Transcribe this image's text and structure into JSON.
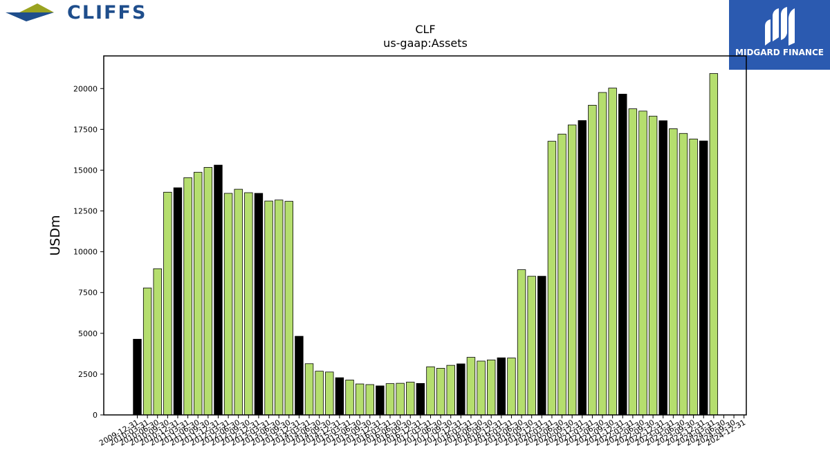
{
  "branding": {
    "company_logo_text": "CLIFFS",
    "company_logo_colors": {
      "triangle_top": "#9aa320",
      "triangle_bottom": "#1f4e8c",
      "text": "#1f4e8c"
    },
    "provider_logo_text": "MIDGARD FINANCE",
    "provider_logo_color": "#2b5ab0"
  },
  "chart_data": {
    "type": "bar",
    "title": "CLF",
    "subtitle": "us-gaap:Assets",
    "ylabel": "USDm",
    "xlabel": "",
    "ylim": [
      0,
      22000
    ],
    "yticks": [
      0,
      2500,
      5000,
      7500,
      10000,
      12500,
      15000,
      17500,
      20000
    ],
    "ytick_labels": [
      "0",
      "2500",
      "5000",
      "7500",
      "10000",
      "12500",
      "15000",
      "17500",
      "20000"
    ],
    "colors": {
      "annual": "#000000",
      "quarterly": "#b5de6e",
      "edge": "#000000"
    },
    "categories": [
      "2009-12-31",
      "2010-03-31",
      "2010-06-30",
      "2010-09-30",
      "2010-12-31",
      "2011-03-31",
      "2011-06-30",
      "2011-09-30",
      "2011-12-31",
      "2012-03-31",
      "2012-06-30",
      "2012-09-30",
      "2012-12-31",
      "2013-03-31",
      "2013-06-30",
      "2013-09-30",
      "2013-12-31",
      "2014-03-31",
      "2014-06-30",
      "2014-09-30",
      "2014-12-31",
      "2015-03-31",
      "2015-06-30",
      "2015-09-30",
      "2015-12-31",
      "2016-03-31",
      "2016-06-30",
      "2016-09-30",
      "2016-12-31",
      "2017-03-31",
      "2017-06-30",
      "2017-09-30",
      "2017-12-31",
      "2018-03-31",
      "2018-06-30",
      "2018-09-30",
      "2018-12-31",
      "2019-03-31",
      "2019-06-30",
      "2019-09-30",
      "2019-12-31",
      "2020-03-31",
      "2020-06-30",
      "2020-09-30",
      "2020-12-31",
      "2021-03-31",
      "2021-06-30",
      "2021-09-30",
      "2021-12-31",
      "2022-03-31",
      "2022-06-30",
      "2022-09-30",
      "2022-12-31",
      "2023-03-31",
      "2023-06-30",
      "2023-09-30",
      "2023-12-31",
      "2024-03-31",
      "2024-06-30",
      "2024-09-30",
      "2024-12-31"
    ],
    "xtick_labels": [
      "2009-12-31",
      "2010-03-31",
      "2010-06-30",
      "2010-09-30",
      "2010-12-31",
      "2011-03-31",
      "2011-06-30",
      "2011-09-30",
      "2011-12-31",
      "2012-03-31",
      "2012-06-30",
      "2012-09-30",
      "2012-12-31",
      "2013-03-31",
      "2013-06-30",
      "2013-09-30",
      "2013-12-31",
      "2014-03-31",
      "2014-06-30",
      "2014-09-30",
      "2014-12-31",
      "2015-03-31",
      "2015-06-30",
      "2015-09-30",
      "2015-12-31",
      "2016-03-31",
      "2016-06-30",
      "2016-09-30",
      "2016-12-31",
      "2017-03-31",
      "2017-06-30",
      "2017-09-30",
      "2017-12-31",
      "2018-03-31",
      "2018-06-30",
      "2018-09-30",
      "2018-12-31",
      "2019-03-31",
      "2019-06-30",
      "2019-09-30",
      "2019-12-31",
      "2020-03-31",
      "2020-06-30",
      "2020-09-30",
      "2020-12-31",
      "2021-03-31",
      "2021-06-30",
      "2021-09-30",
      "2021-12-31",
      "2022-03-31",
      "2022-06-30",
      "2022-09-30",
      "2022-12-31",
      "2023-03-31",
      "2023-06-30",
      "2023-09-30",
      "2023-12-31",
      "2024-03-31",
      "2024-06-30",
      "2024-09-30",
      "2024-12-31"
    ],
    "values": [
      4640,
      7780,
      8960,
      13650,
      13920,
      14540,
      14870,
      15170,
      15310,
      13580,
      13830,
      13620,
      13580,
      13110,
      13170,
      13090,
      4820,
      3140,
      2680,
      2630,
      2280,
      2140,
      1900,
      1860,
      1780,
      1920,
      1940,
      2010,
      1930,
      2950,
      2860,
      3040,
      3130,
      3530,
      3300,
      3370,
      3500,
      3490,
      8900,
      8500,
      8500,
      16770,
      17210,
      17770,
      18040,
      18980,
      19760,
      20030,
      19660,
      18760,
      18620,
      18310,
      18030,
      17540,
      17250,
      16910,
      16790,
      20920,
      null,
      null,
      null
    ],
    "annual": [
      true,
      false,
      false,
      false,
      true,
      false,
      false,
      false,
      true,
      false,
      false,
      false,
      true,
      false,
      false,
      false,
      true,
      false,
      false,
      false,
      true,
      false,
      false,
      false,
      true,
      false,
      false,
      false,
      true,
      false,
      false,
      false,
      true,
      false,
      false,
      false,
      true,
      false,
      false,
      false,
      true,
      false,
      false,
      false,
      true,
      false,
      false,
      false,
      true,
      false,
      false,
      false,
      true,
      false,
      false,
      false,
      true,
      false,
      false,
      false,
      true
    ]
  }
}
